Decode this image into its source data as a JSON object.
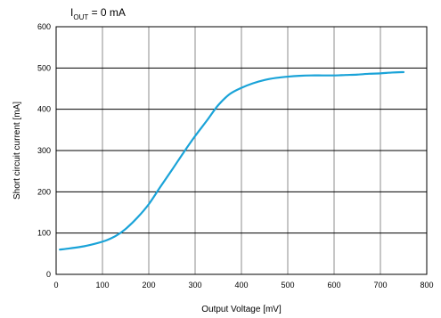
{
  "chart_data": {
    "type": "line",
    "annotation": {
      "main": "I",
      "sub": "OUT",
      "rest": " = 0 mA"
    },
    "xlabel": "Output Voltage [mV]",
    "ylabel": "Short circuit current [mA]",
    "xlim": [
      0,
      800
    ],
    "ylim": [
      0,
      600
    ],
    "xticks": [
      0,
      100,
      200,
      300,
      400,
      500,
      600,
      700,
      800
    ],
    "yticks": [
      0,
      100,
      200,
      300,
      400,
      500,
      600
    ],
    "grid": true,
    "colors": {
      "line": "#1aa3d8",
      "grid": "#8c8c8c",
      "axis": "#000000"
    },
    "series": [
      {
        "x": [
          8,
          30,
          60,
          90,
          110,
          130,
          150,
          175,
          200,
          225,
          250,
          275,
          300,
          325,
          350,
          375,
          400,
          425,
          450,
          475,
          500,
          525,
          550,
          575,
          600,
          625,
          650,
          675,
          700,
          725,
          750
        ],
        "y": [
          60,
          63,
          68,
          76,
          83,
          94,
          110,
          137,
          170,
          212,
          253,
          295,
          335,
          372,
          410,
          437,
          452,
          463,
          471,
          476,
          479,
          481,
          482,
          482,
          482,
          483,
          484,
          486,
          487,
          489,
          490
        ]
      }
    ]
  }
}
